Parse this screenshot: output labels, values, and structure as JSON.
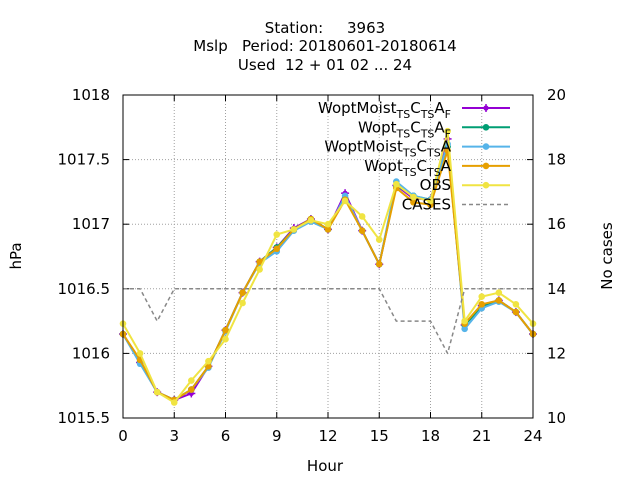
{
  "chart_data": {
    "type": "line",
    "title_lines": [
      "Station:     3963",
      "Mslp   Period: 20180601-20180614",
      "Used  12 + 01 02 ... 24"
    ],
    "xlabel": "Hour",
    "ylabel": "hPa",
    "y2label": "No cases",
    "xlim": [
      0,
      24
    ],
    "ylim": [
      1015.5,
      1018
    ],
    "y2lim": [
      10,
      20
    ],
    "xticks": [
      "0",
      "3",
      "6",
      "9",
      "12",
      "15",
      "18",
      "21",
      "24"
    ],
    "yticks": [
      "1015.5",
      "1016",
      "1016.5",
      "1017",
      "1017.5",
      "1018"
    ],
    "y2ticks": [
      "10",
      "12",
      "14",
      "16",
      "18",
      "20"
    ],
    "grid": true,
    "legend_position": "top-right",
    "x": [
      0,
      1,
      2,
      3,
      4,
      5,
      6,
      7,
      8,
      9,
      10,
      11,
      12,
      13,
      14,
      15,
      16,
      17,
      18,
      19,
      20,
      21,
      22,
      23,
      24
    ],
    "series": [
      {
        "name": "WoptMoist",
        "name_sub": "TS",
        "name_mid": "C",
        "name_sub2": "TS",
        "name_end": "A",
        "name_sub3": "F",
        "color": "#9400d3",
        "marker": "plus",
        "axis": "y",
        "values": [
          1016.15,
          1015.93,
          1015.7,
          1015.64,
          1015.69,
          1015.9,
          1016.18,
          1016.47,
          1016.71,
          1016.82,
          1016.97,
          1017.04,
          1016.96,
          1017.24,
          1016.95,
          1016.69,
          1017.3,
          1017.2,
          1017.19,
          1017.66,
          1016.22,
          1016.37,
          1016.41,
          1016.32,
          1016.15
        ]
      },
      {
        "name": "Wopt",
        "name_sub": "TS",
        "name_mid": "C",
        "name_sub2": "TS",
        "name_end": "A",
        "name_sub3": "F",
        "color": "#009e73",
        "marker": "filled-circle",
        "axis": "y",
        "values": [
          1016.15,
          1015.93,
          1015.7,
          1015.64,
          1015.72,
          1015.9,
          1016.18,
          1016.47,
          1016.71,
          1016.82,
          1016.96,
          1017.04,
          1016.96,
          1017.2,
          1016.95,
          1016.69,
          1017.3,
          1017.22,
          1017.19,
          1017.6,
          1016.22,
          1016.36,
          1016.41,
          1016.32,
          1016.15
        ]
      },
      {
        "name": "WoptMoist",
        "name_sub": "TS",
        "name_mid": "C",
        "name_sub2": "TS",
        "name_end": "A",
        "name_sub3": "",
        "color": "#56b4e9",
        "marker": "filled-circle",
        "axis": "y",
        "values": [
          1016.15,
          1015.92,
          1015.7,
          1015.64,
          1015.72,
          1015.89,
          1016.17,
          1016.47,
          1016.7,
          1016.79,
          1016.95,
          1017.02,
          1016.96,
          1017.22,
          1016.95,
          1016.69,
          1017.33,
          1017.22,
          1017.19,
          1017.62,
          1016.19,
          1016.35,
          1016.4,
          1016.32,
          1016.15
        ]
      },
      {
        "name": "Wopt",
        "name_sub": "TS",
        "name_mid": "C",
        "name_sub2": "TS",
        "name_end": "A",
        "name_sub3": "",
        "color": "#e69f00",
        "marker": "filled-circle",
        "axis": "y",
        "values": [
          1016.15,
          1015.95,
          1015.7,
          1015.64,
          1015.72,
          1015.9,
          1016.18,
          1016.47,
          1016.71,
          1016.81,
          1016.96,
          1017.04,
          1016.96,
          1017.19,
          1016.95,
          1016.69,
          1017.28,
          1017.17,
          1017.15,
          1017.57,
          1016.23,
          1016.38,
          1016.41,
          1016.32,
          1016.15
        ]
      },
      {
        "name": "OBS",
        "color": "#f0e442",
        "marker": "filled-circle",
        "axis": "y",
        "values": [
          1016.23,
          1016.0,
          1015.7,
          1015.62,
          1015.79,
          1015.94,
          1016.11,
          1016.39,
          1016.65,
          1016.92,
          1016.96,
          1017.03,
          1017.0,
          1017.18,
          1017.06,
          1016.88,
          1017.31,
          1017.21,
          1017.18,
          1017.72,
          1016.25,
          1016.44,
          1016.47,
          1016.38,
          1016.23
        ]
      },
      {
        "name": "CASES",
        "color": "#888888",
        "marker": "none",
        "dashed": true,
        "axis": "y2",
        "values": [
          14,
          14,
          13,
          14,
          14,
          14,
          14,
          14,
          14,
          14,
          14,
          14,
          14,
          14,
          14,
          14,
          13,
          13,
          13,
          12,
          14,
          14,
          14,
          14,
          14
        ]
      }
    ]
  }
}
